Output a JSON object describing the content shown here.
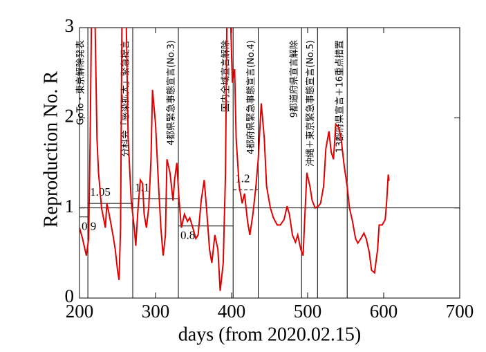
{
  "chart_data": {
    "type": "line",
    "xlabel": "days   (from 2020.02.15)",
    "ylabel": "Reproduction No.  R",
    "xlim": [
      200,
      700
    ],
    "xticks": [
      200,
      300,
      400,
      500,
      600,
      700
    ],
    "ylim": [
      0,
      3
    ],
    "yticks": [
      0,
      1,
      2,
      3
    ],
    "hline": 1,
    "series": [
      {
        "name": "R",
        "color": "#e00000",
        "x": [
          200,
          204,
          209,
          212,
          214,
          216,
          220,
          223,
          225,
          229,
          234,
          236,
          239,
          244,
          247,
          250,
          252,
          254,
          256,
          261,
          264,
          268,
          272,
          274,
          277,
          280,
          283,
          285,
          288,
          291,
          294,
          296,
          300,
          304,
          307,
          310,
          313,
          315,
          319,
          323,
          325,
          328,
          331,
          334,
          338,
          342,
          345,
          349,
          353,
          356,
          360,
          364,
          367,
          371,
          374,
          378,
          382,
          385,
          389,
          392,
          394,
          398,
          401,
          404,
          406,
          410,
          414,
          417,
          421,
          424,
          428,
          432,
          435,
          439,
          443,
          446,
          451,
          455,
          460,
          464,
          469,
          473,
          476,
          480,
          484,
          487,
          491,
          494,
          496,
          499,
          503,
          506,
          510,
          514,
          517,
          521,
          524,
          528,
          531,
          534,
          537,
          541,
          544,
          548,
          552,
          555,
          559,
          563,
          566,
          570,
          574,
          577,
          581,
          584,
          588,
          592,
          594,
          598,
          602,
          604,
          606,
          607
        ],
        "values": [
          0.78,
          0.66,
          0.47,
          0.66,
          1.77,
          3.3,
          3.3,
          1.77,
          1.39,
          1.0,
          0.78,
          1.05,
          0.93,
          0.7,
          0.54,
          0.31,
          0.2,
          0.78,
          3.3,
          3.3,
          1.77,
          1.08,
          0.78,
          0.58,
          1.0,
          1.31,
          1.27,
          0.93,
          0.78,
          1.0,
          1.54,
          2.31,
          1.93,
          1.24,
          0.78,
          0.47,
          0.7,
          1.54,
          1.39,
          1.08,
          1.31,
          1.5,
          1.08,
          0.78,
          0.93,
          0.85,
          0.89,
          0.78,
          0.66,
          0.7,
          1.08,
          1.31,
          1.0,
          0.54,
          0.39,
          0.7,
          0.54,
          0.08,
          0.39,
          1.39,
          3.3,
          3.3,
          2.39,
          2.54,
          1.77,
          1.24,
          1.05,
          1.16,
          0.85,
          0.7,
          0.93,
          1.24,
          1.54,
          2.16,
          1.77,
          1.24,
          1.0,
          0.89,
          0.81,
          0.81,
          0.87,
          1.02,
          0.93,
          0.7,
          0.62,
          0.7,
          0.54,
          0.47,
          0.85,
          1.39,
          1.24,
          1.08,
          1.0,
          1.02,
          1.05,
          1.24,
          1.66,
          1.85,
          1.62,
          1.54,
          1.93,
          1.89,
          1.77,
          1.47,
          1.24,
          1.0,
          0.85,
          0.66,
          0.61,
          0.66,
          0.72,
          0.66,
          0.51,
          0.31,
          0.28,
          0.54,
          0.81,
          0.81,
          0.87,
          1.08,
          1.37,
          1.3
        ]
      }
    ],
    "periods": [
      {
        "start": 200,
        "end": 211,
        "value": 0.9
      },
      {
        "start": 211,
        "end": 270,
        "value": 1.05
      },
      {
        "start": 270,
        "end": 330,
        "value": 1.1
      },
      {
        "start": 330,
        "end": 402,
        "value": 0.8
      },
      {
        "start": 402,
        "end": 435,
        "value": 1.2
      }
    ],
    "events": [
      {
        "day": 211,
        "label": "GoTo・東京解除発表"
      },
      {
        "day": 270,
        "label": "分科会「感染拡大」緊急提言"
      },
      {
        "day": 330,
        "label": "4都県緊急事態宣言(No.3)"
      },
      {
        "day": 402,
        "label": "国内全域宣言解除"
      },
      {
        "day": 435,
        "label": "4都府県緊急事態宣言(No.4)"
      },
      {
        "day": 492,
        "label": "9都道府県宣言解除"
      },
      {
        "day": 513,
        "label": "沖縄＋東京緊急事態宣言(No.5)"
      },
      {
        "day": 552,
        "label": "13都府県宣言＋16重点措置"
      }
    ]
  }
}
